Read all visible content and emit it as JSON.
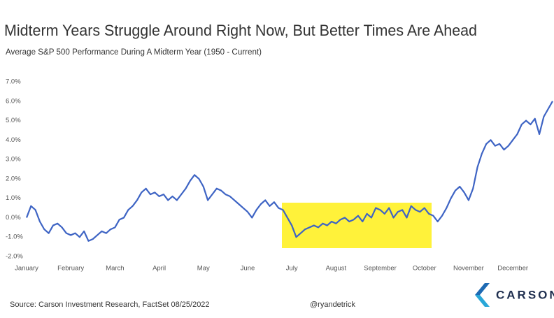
{
  "chart_data": {
    "type": "line",
    "title": "Midterm Years Struggle Around Right Now, But Better Times Are Ahead",
    "subtitle": "Average S&P 500 Performance During A Midterm Year (1950 - Current)",
    "source": "Source: Carson Investment Research, FactSet 08/25/2022",
    "credit": "@ryandetrick",
    "logo_text": "CARSON",
    "categories": [
      "January",
      null,
      null,
      null,
      null,
      null,
      null,
      null,
      null,
      null,
      "February",
      null,
      null,
      null,
      null,
      null,
      null,
      null,
      null,
      null,
      "March",
      null,
      null,
      null,
      null,
      null,
      null,
      null,
      null,
      null,
      "April",
      null,
      null,
      null,
      null,
      null,
      null,
      null,
      null,
      null,
      "May",
      null,
      null,
      null,
      null,
      null,
      null,
      null,
      null,
      null,
      "June",
      null,
      null,
      null,
      null,
      null,
      null,
      null,
      null,
      null,
      "July",
      null,
      null,
      null,
      null,
      null,
      null,
      null,
      null,
      null,
      "August",
      null,
      null,
      null,
      null,
      null,
      null,
      null,
      null,
      null,
      "September",
      null,
      null,
      null,
      null,
      null,
      null,
      null,
      null,
      null,
      "October",
      null,
      null,
      null,
      null,
      null,
      null,
      null,
      null,
      null,
      "November",
      null,
      null,
      null,
      null,
      null,
      null,
      null,
      null,
      null,
      "December",
      null,
      null,
      null,
      null,
      null,
      null,
      null,
      null,
      null
    ],
    "series": [
      {
        "color": "#3e64c4",
        "values": [
          0,
          0.6,
          0.4,
          -0.2,
          -0.6,
          -0.8,
          -0.4,
          -0.3,
          -0.5,
          -0.8,
          -0.9,
          -0.8,
          -1.0,
          -0.7,
          -1.2,
          -1.1,
          -0.9,
          -0.7,
          -0.8,
          -0.6,
          -0.5,
          -0.1,
          0.0,
          0.4,
          0.6,
          0.9,
          1.3,
          1.5,
          1.2,
          1.3,
          1.1,
          1.2,
          0.9,
          1.1,
          0.9,
          1.2,
          1.5,
          1.9,
          2.2,
          2.0,
          1.6,
          0.9,
          1.2,
          1.5,
          1.4,
          1.2,
          1.1,
          0.9,
          0.7,
          0.5,
          0.3,
          0.0,
          0.4,
          0.7,
          0.9,
          0.6,
          0.8,
          0.5,
          0.4,
          0.0,
          -0.4,
          -1.0,
          -0.8,
          -0.6,
          -0.5,
          -0.4,
          -0.5,
          -0.3,
          -0.4,
          -0.2,
          -0.3,
          -0.1,
          0.0,
          -0.2,
          -0.1,
          0.1,
          -0.2,
          0.2,
          0.0,
          0.5,
          0.4,
          0.2,
          0.5,
          0.0,
          0.3,
          0.4,
          0.0,
          0.6,
          0.4,
          0.3,
          0.5,
          0.2,
          0.1,
          -0.2,
          0.1,
          0.5,
          1.0,
          1.4,
          1.6,
          1.3,
          0.9,
          1.5,
          2.6,
          3.3,
          3.8,
          4.0,
          3.7,
          3.8,
          3.5,
          3.7,
          4.0,
          4.3,
          4.8,
          5.0,
          4.8,
          5.1,
          4.3,
          5.2,
          5.6,
          6.0
        ]
      }
    ],
    "ylim": [
      -2,
      7
    ],
    "yticks": [
      {
        "value": -2,
        "label": "-2.0%"
      },
      {
        "value": -1,
        "label": "-1.0%"
      },
      {
        "value": 0,
        "label": "0.0%"
      },
      {
        "value": 1,
        "label": "1.0%"
      },
      {
        "value": 2,
        "label": "2.0%"
      },
      {
        "value": 3,
        "label": "3.0%"
      },
      {
        "value": 4,
        "label": "4.0%"
      },
      {
        "value": 5,
        "label": "5.0%"
      },
      {
        "value": 6,
        "label": "6.0%"
      },
      {
        "value": 7,
        "label": "7.0%"
      }
    ],
    "grid": false
  }
}
